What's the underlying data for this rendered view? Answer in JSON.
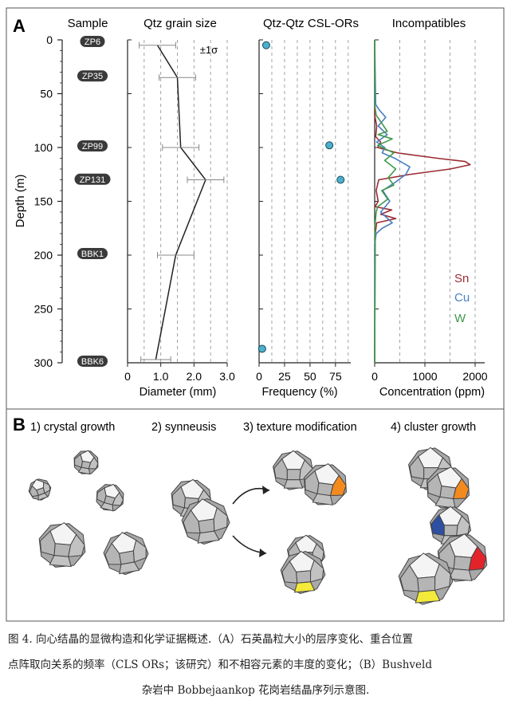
{
  "panel_a": {
    "label": "A",
    "headers": {
      "sample": "Sample",
      "grain": "Qtz grain size",
      "csl": "Qtz-Qtz CSL-ORs",
      "incompat": "Incompatibles"
    },
    "samples": [
      {
        "name": "ZP6",
        "depth": 0
      },
      {
        "name": "ZP35",
        "depth": 32
      },
      {
        "name": "ZP99",
        "depth": 97
      },
      {
        "name": "ZP131",
        "depth": 128
      },
      {
        "name": "BBK1",
        "depth": 197
      },
      {
        "name": "BBK6",
        "depth": 297
      }
    ]
  },
  "chart_data": [
    {
      "id": "depth-axis",
      "type": "axis",
      "ylabel": "Depth (m)",
      "ylim": [
        0,
        300
      ],
      "ytick_labels": [
        "0",
        "50",
        "100",
        "150",
        "200",
        "250",
        "300"
      ]
    },
    {
      "id": "grain-size",
      "type": "line",
      "title": "Qtz grain size",
      "xlabel": "Diameter (mm)",
      "xlim": [
        0,
        3.0
      ],
      "xtick_labels": [
        "0",
        "1.0",
        "2.0",
        "3.0"
      ],
      "annotation": "±1σ",
      "points": [
        {
          "depth": 5,
          "value": 0.9,
          "err": 0.55
        },
        {
          "depth": 35,
          "value": 1.5,
          "err": 0.55
        },
        {
          "depth": 100,
          "value": 1.6,
          "err": 0.55
        },
        {
          "depth": 130,
          "value": 2.35,
          "err": 0.55
        },
        {
          "depth": 200,
          "value": 1.45,
          "err": 0.55
        },
        {
          "depth": 297,
          "value": 0.85,
          "err": 0.45
        }
      ]
    },
    {
      "id": "csl-frequency",
      "type": "scatter",
      "title": "Qtz-Qtz CSL-ORs",
      "xlabel": "Frequency (%)",
      "xlim": [
        0,
        90
      ],
      "xtick_labels": [
        "0",
        "25",
        "50",
        "75"
      ],
      "points": [
        {
          "depth": 5,
          "value": 7
        },
        {
          "depth": 98,
          "value": 69
        },
        {
          "depth": 130,
          "value": 80
        },
        {
          "depth": 287,
          "value": 3
        }
      ],
      "color": "#4ab0cc"
    },
    {
      "id": "incompatibles",
      "type": "line",
      "title": "Incompatibles",
      "xlabel": "Concentration (ppm)",
      "xlim": [
        0,
        2000
      ],
      "xtick_labels": [
        "0",
        "1000",
        "2000"
      ],
      "series": [
        {
          "name": "Sn",
          "color": "#9b2b32",
          "depth": [
            0,
            70,
            80,
            90,
            95,
            100,
            105,
            110,
            113,
            116,
            120,
            125,
            130,
            140,
            150,
            155,
            158,
            162,
            166,
            170,
            180,
            300
          ],
          "values": [
            0,
            0,
            40,
            20,
            120,
            60,
            450,
            1250,
            1800,
            1900,
            1500,
            700,
            80,
            30,
            70,
            10,
            340,
            120,
            420,
            40,
            10,
            0
          ]
        },
        {
          "name": "Cu",
          "color": "#4a7fc1",
          "depth": [
            0,
            60,
            65,
            72,
            80,
            88,
            95,
            100,
            105,
            110,
            118,
            125,
            132,
            140,
            150,
            160,
            170,
            175,
            180,
            190,
            300
          ],
          "values": [
            0,
            20,
            90,
            220,
            70,
            250,
            40,
            200,
            150,
            400,
            700,
            620,
            420,
            160,
            300,
            120,
            350,
            150,
            30,
            0,
            0
          ]
        },
        {
          "name": "W",
          "color": "#3f9a4a",
          "depth": [
            0,
            60,
            70,
            78,
            85,
            88,
            92,
            98,
            105,
            112,
            120,
            128,
            135,
            140,
            148,
            155,
            160,
            175,
            185,
            300
          ],
          "values": [
            0,
            0,
            30,
            150,
            250,
            70,
            350,
            60,
            380,
            200,
            420,
            270,
            380,
            140,
            260,
            60,
            30,
            0,
            10,
            0
          ]
        }
      ]
    }
  ],
  "panel_b": {
    "label": "B",
    "stages": [
      "1) crystal growth",
      "2) synneusis",
      "3) texture modification",
      "4) cluster growth"
    ]
  },
  "caption": {
    "line1": "图 4. 向心结晶的显微构造和化学证据概述.（A）石英晶粒大小的层序变化、重合位置",
    "line2": "点阵取向关系的频率（CLS ORs；该研究）和不相容元素的丰度的变化；（B）Bushveld",
    "line3": "杂岩中 Bobbejaankop 花岗岩结晶序列示意图."
  },
  "colors": {
    "orange": "#f28a1e",
    "yellow": "#f3ea3a",
    "red": "#e3232a",
    "blue": "#2f4fa2",
    "crystal": "#bdbdbd"
  }
}
